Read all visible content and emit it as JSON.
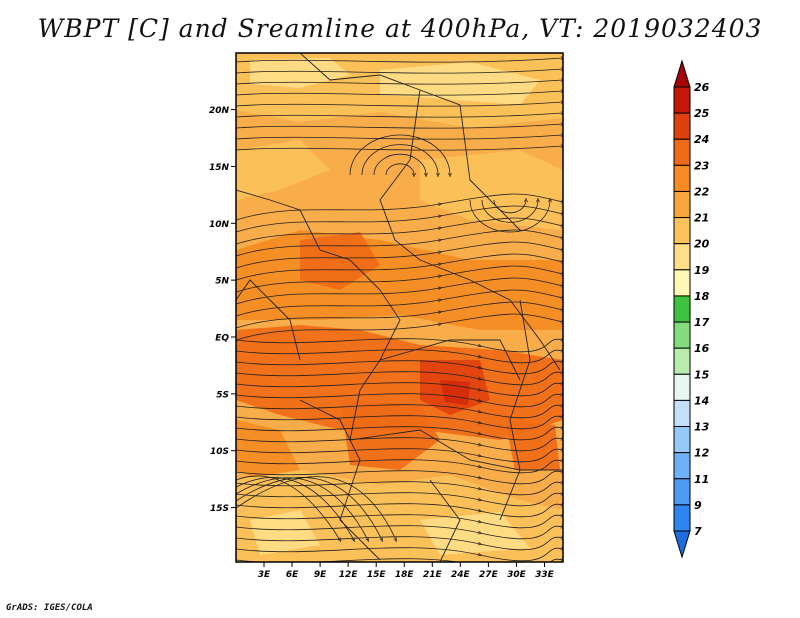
{
  "title": "WBPT [C] and Sreamline at 400hPa, VT: 2019032403",
  "credit": "GrADS: IGES/COLA",
  "map": {
    "lat_labels": [
      "20N",
      "15N",
      "10N",
      "5N",
      "EQ",
      "5S",
      "10S",
      "15S"
    ],
    "lon_labels": [
      "3E",
      "6E",
      "9E",
      "12E",
      "15E",
      "18E",
      "21E",
      "24E",
      "27E",
      "30E",
      "33E"
    ],
    "lat_range": [
      -19.5,
      24.5
    ],
    "lon_range": [
      0.5,
      34.0
    ],
    "field_description_colors": {
      "background": "#f9ad4a",
      "warm_band": "#f27a1e"
    }
  },
  "colorbar": {
    "labels": [
      "7",
      "9",
      "11",
      "12",
      "13",
      "14",
      "15",
      "16",
      "17",
      "18",
      "19",
      "20",
      "21",
      "22",
      "23",
      "24",
      "25",
      "26"
    ],
    "colors": [
      "#1d6fe0",
      "#2e84f0",
      "#4c9cf5",
      "#6db2f7",
      "#96c8f8",
      "#c3e0fb",
      "#e7f6ee",
      "#b9ecab",
      "#84dc7c",
      "#3fc23f",
      "#fff7b6",
      "#ffde88",
      "#fcc25b",
      "#f9a53a",
      "#f58b22",
      "#ef6a16",
      "#e0400d",
      "#c4190a",
      "#a50606"
    ]
  }
}
